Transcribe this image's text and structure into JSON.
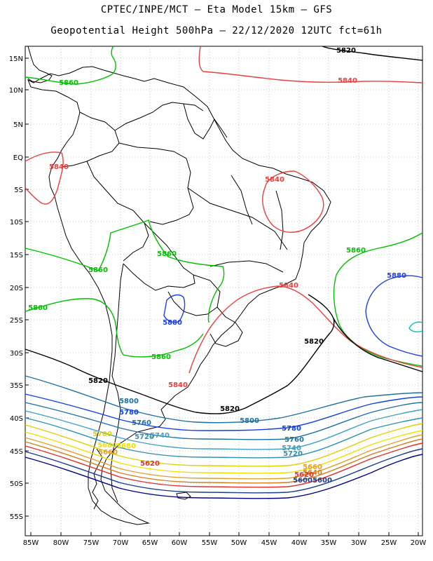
{
  "header": {
    "line1": "CPTEC/INPE/MCT –  Eta Model 15km – GFS",
    "line2": "Geopotential Height 500hPa – 22/12/2020 12UTC fct=61h"
  },
  "axes": {
    "lat_ticks": [
      "15N",
      "10N",
      "5N",
      "EQ",
      "5S",
      "10S",
      "15S",
      "20S",
      "25S",
      "30S",
      "35S",
      "40S",
      "45S",
      "50S",
      "55S"
    ],
    "lon_ticks": [
      "85W",
      "80W",
      "75W",
      "70W",
      "65W",
      "60W",
      "55W",
      "50W",
      "45W",
      "40W",
      "35W",
      "30W",
      "25W",
      "20W"
    ],
    "grid": true
  },
  "contour_colors": {
    "5580": "#000080",
    "5600": "#1a3a8a",
    "5620": "#e03030",
    "5640": "#d08020",
    "5660": "#e0a030",
    "5680": "#f0e000",
    "5700": "#e0d000",
    "5720": "#3090b0",
    "5740": "#40a0c0",
    "5760": "#2070a0",
    "5780": "#1040e0",
    "5800": "#2070a0",
    "5820": "#000000",
    "5840": "#e84040",
    "5860": "#00c000",
    "5880": "#2040e0",
    "5900": "#00c0c0"
  },
  "contour_labels": [
    {
      "text": "5820",
      "level": "5820"
    },
    {
      "text": "5840",
      "level": "5840"
    },
    {
      "text": "5860",
      "level": "5860"
    },
    {
      "text": "5840",
      "level": "5840"
    },
    {
      "text": "5840",
      "level": "5840"
    },
    {
      "text": "5860",
      "level": "5860"
    },
    {
      "text": "5860",
      "level": "5860"
    },
    {
      "text": "5860",
      "level": "5860"
    },
    {
      "text": "5880",
      "level": "5880"
    },
    {
      "text": "5840",
      "level": "5840"
    },
    {
      "text": "5860",
      "level": "5860"
    },
    {
      "text": "5880",
      "level": "5880"
    },
    {
      "text": "5820",
      "level": "5820"
    },
    {
      "text": "5860",
      "level": "5860"
    },
    {
      "text": "5820",
      "level": "5820"
    },
    {
      "text": "5840",
      "level": "5840"
    },
    {
      "text": "5820",
      "level": "5820"
    },
    {
      "text": "5800",
      "level": "5800"
    },
    {
      "text": "5780",
      "level": "5780"
    },
    {
      "text": "5760",
      "level": "5760"
    },
    {
      "text": "5720",
      "level": "5720"
    },
    {
      "text": "5740",
      "level": "5740"
    },
    {
      "text": "5700",
      "level": "5700"
    },
    {
      "text": "5680",
      "level": "5680"
    },
    {
      "text": "5660",
      "level": "5660"
    },
    {
      "text": "5620",
      "level": "5620"
    },
    {
      "text": "5600",
      "level": "5600"
    },
    {
      "text": "5800",
      "level": "5800"
    },
    {
      "text": "5780",
      "level": "5780"
    },
    {
      "text": "5760",
      "level": "5760"
    },
    {
      "text": "5740",
      "level": "5740"
    },
    {
      "text": "5720",
      "level": "5720"
    },
    {
      "text": "5680",
      "level": "5680"
    },
    {
      "text": "5660",
      "level": "5660"
    },
    {
      "text": "5640",
      "level": "5640"
    },
    {
      "text": "5620",
      "level": "5620"
    },
    {
      "text": "5600",
      "level": "5600"
    }
  ]
}
